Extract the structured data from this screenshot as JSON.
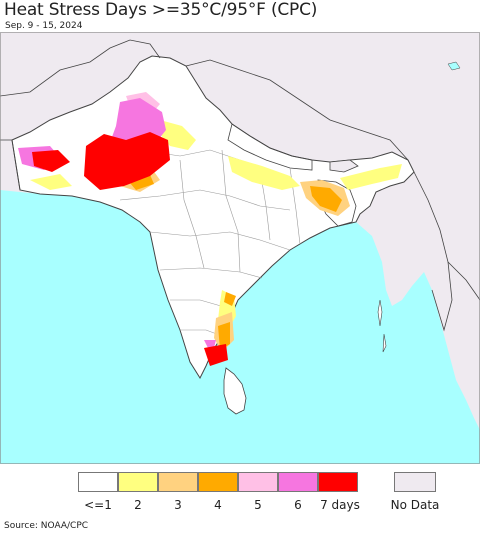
{
  "title": "Heat Stress Days >=35°C/95°F (CPC)",
  "date_range": "Sep. 9 - 15, 2024",
  "source": "Source: NOAA/CPC",
  "colors": {
    "ocean": "#a8ffff",
    "land": "#ffffff",
    "outside_region": "#efeaf0",
    "borders": "#444444",
    "states": "#9a9a9a"
  },
  "legend": {
    "items": [
      {
        "label": "<=1",
        "color": "#ffffff"
      },
      {
        "label": "2",
        "color": "#ffff80"
      },
      {
        "label": "3",
        "color": "#ffd280"
      },
      {
        "label": "4",
        "color": "#ffaa00"
      },
      {
        "label": "5",
        "color": "#ffc0e6"
      },
      {
        "label": "6",
        "color": "#f676e0"
      },
      {
        "label": "7 days",
        "color": "#ff0000"
      }
    ],
    "no_data": {
      "label": "No Data",
      "color": "#efeaf0"
    }
  }
}
